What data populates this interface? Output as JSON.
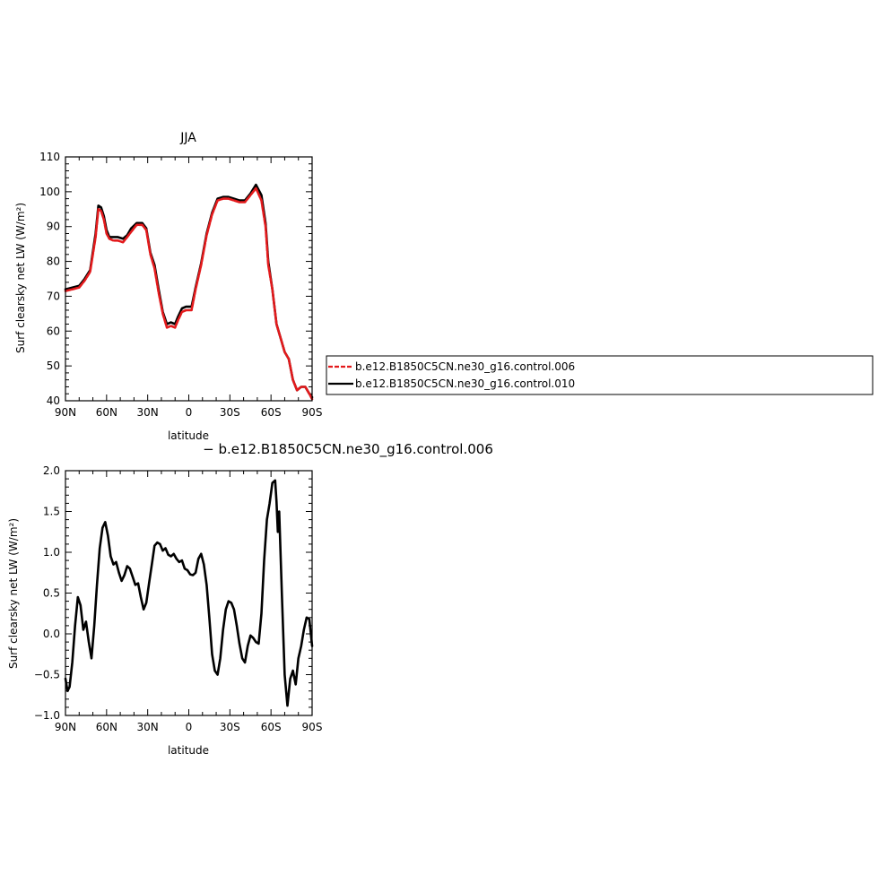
{
  "top_panel": {
    "title": "JJA",
    "ylabel": "Surf clearsky net LW (W/m²)",
    "xlabel": "latitude"
  },
  "bottom_panel": {
    "title": "− b.e12.B1850C5CN.ne30_g16.control.006",
    "ylabel": "Surf clearsky net LW (W/m²)",
    "xlabel": "latitude"
  },
  "legend": {
    "items": [
      {
        "label": "b.e12.B1850C5CN.ne30_g16.control.006",
        "color": "#e31a1c",
        "dash": "dashed"
      },
      {
        "label": "b.e12.B1850C5CN.ne30_g16.control.010",
        "color": "#000000",
        "dash": "solid"
      }
    ]
  },
  "chart_data": [
    {
      "type": "line",
      "title": "JJA",
      "xlabel": "latitude",
      "ylabel": "Surf clearsky net LW (W/m²)",
      "xlim": [
        90,
        -90
      ],
      "ylim": [
        40,
        110
      ],
      "xticks": [
        90,
        60,
        30,
        0,
        -30,
        -60,
        -90
      ],
      "xtick_labels": [
        "90N",
        "60N",
        "30N",
        "0",
        "30S",
        "60S",
        "90S"
      ],
      "yticks": [
        40,
        50,
        60,
        70,
        80,
        90,
        100,
        110
      ],
      "ytick_labels": [
        "40",
        "50",
        "60",
        "70",
        "80",
        "90",
        "100",
        "110"
      ],
      "x": [
        90,
        85,
        80,
        76,
        72,
        68,
        66,
        64,
        62,
        60,
        58,
        55,
        52,
        48,
        45,
        42,
        38,
        34,
        31,
        28,
        25,
        22,
        19,
        16,
        13,
        10,
        8,
        5,
        2,
        -2,
        -5,
        -9,
        -13,
        -17,
        -21,
        -25,
        -29,
        -33,
        -37,
        -41,
        -45,
        -49,
        -53,
        -56,
        -58,
        -61,
        -64,
        -67,
        -70,
        -73,
        -76,
        -79,
        -82,
        -85,
        -88,
        -90
      ],
      "series": [
        {
          "name": "b.e12.B1850C5CN.ne30_g16.control.006",
          "color": "#e31a1c",
          "values": [
            71.5,
            72,
            72.5,
            74.5,
            77,
            87,
            95,
            94.5,
            92,
            88,
            86.5,
            86,
            86,
            85.5,
            87,
            88.5,
            90.5,
            90.5,
            89,
            82,
            78,
            71,
            65,
            61,
            61.5,
            61,
            63,
            65.5,
            66,
            66,
            72,
            79,
            87.5,
            93.5,
            97.5,
            98,
            98,
            97.5,
            97,
            97,
            99,
            101,
            97.5,
            90,
            79,
            72,
            62,
            58,
            54,
            52,
            46,
            43,
            44,
            44,
            42,
            40.5
          ]
        },
        {
          "name": "b.e12.B1850C5CN.ne30_g16.control.010",
          "color": "#000000",
          "values": [
            72,
            72.5,
            73,
            75,
            77.5,
            88,
            96,
            95.5,
            93,
            89,
            87,
            87,
            87,
            86.5,
            87.5,
            89.5,
            91,
            91,
            89.5,
            82.5,
            79,
            72,
            65.5,
            62,
            62.5,
            62,
            64,
            66.5,
            67,
            67,
            72.5,
            79.5,
            88,
            94,
            98,
            98.5,
            98.5,
            98,
            97.5,
            97.5,
            99.5,
            102,
            99,
            91,
            80,
            72,
            62,
            58,
            54,
            52,
            46,
            43,
            44,
            44,
            42,
            41
          ]
        }
      ]
    },
    {
      "type": "line",
      "title": "− b.e12.B1850C5CN.ne30_g16.control.006",
      "xlabel": "latitude",
      "ylabel": "Surf clearsky net LW (W/m²)",
      "xlim": [
        90,
        -90
      ],
      "ylim": [
        -1.0,
        2.0
      ],
      "xticks": [
        90,
        60,
        30,
        0,
        -30,
        -60,
        -90
      ],
      "xtick_labels": [
        "90N",
        "60N",
        "30N",
        "0",
        "30S",
        "60S",
        "90S"
      ],
      "yticks": [
        -1.0,
        -0.5,
        0.0,
        0.5,
        1.0,
        1.5,
        2.0
      ],
      "ytick_labels": [
        "−1.0",
        "−0.5",
        "0.0",
        "0.5",
        "1.0",
        "1.5",
        "2.0"
      ],
      "x": [
        90,
        88.5,
        87,
        85,
        83,
        81,
        79,
        77,
        75,
        73,
        71,
        69,
        67,
        65,
        63,
        61,
        59,
        57,
        55,
        53,
        51,
        49,
        47,
        45,
        43,
        41,
        39,
        37,
        35,
        33,
        31,
        29,
        27,
        25,
        23,
        21,
        19,
        17,
        15,
        13,
        11,
        9,
        7,
        5,
        3,
        1,
        -1,
        -3,
        -5,
        -7,
        -9,
        -11,
        -13,
        -15,
        -17,
        -19,
        -21,
        -23,
        -25,
        -27,
        -29,
        -31,
        -33,
        -35,
        -37,
        -39,
        -41,
        -43,
        -45,
        -47,
        -49,
        -51,
        -53,
        -55,
        -57,
        -59,
        -61,
        -63,
        -64,
        -65,
        -66,
        -68,
        -70,
        -72,
        -74,
        -76,
        -78,
        -80,
        -82,
        -84,
        -86,
        -88,
        -90
      ],
      "series": [
        {
          "name": "",
          "color": "#000000",
          "values": [
            -0.55,
            -0.7,
            -0.65,
            -0.35,
            0.1,
            0.45,
            0.35,
            0.05,
            0.15,
            -0.1,
            -0.3,
            0.1,
            0.6,
            1.05,
            1.3,
            1.37,
            1.2,
            0.95,
            0.85,
            0.88,
            0.75,
            0.65,
            0.72,
            0.83,
            0.8,
            0.7,
            0.6,
            0.62,
            0.45,
            0.3,
            0.38,
            0.62,
            0.85,
            1.08,
            1.12,
            1.1,
            1.02,
            1.05,
            0.97,
            0.95,
            0.98,
            0.92,
            0.88,
            0.9,
            0.8,
            0.78,
            0.73,
            0.72,
            0.75,
            0.92,
            0.98,
            0.85,
            0.6,
            0.2,
            -0.25,
            -0.45,
            -0.5,
            -0.3,
            0.05,
            0.3,
            0.4,
            0.38,
            0.3,
            0.1,
            -0.12,
            -0.3,
            -0.35,
            -0.15,
            -0.02,
            -0.05,
            -0.1,
            -0.12,
            0.25,
            0.9,
            1.4,
            1.6,
            1.85,
            1.88,
            1.62,
            1.25,
            1.5,
            0.45,
            -0.5,
            -0.88,
            -0.55,
            -0.45,
            -0.62,
            -0.3,
            -0.15,
            0.05,
            0.2,
            0.18,
            -0.15
          ]
        }
      ]
    }
  ]
}
